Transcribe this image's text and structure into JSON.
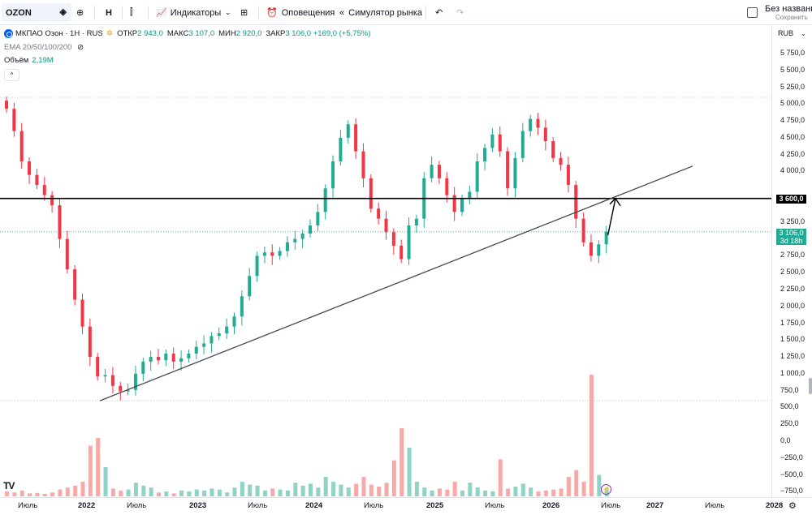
{
  "toolbar": {
    "symbol": "OZON",
    "interval": "H",
    "indicators_label": "Индикаторы",
    "alerts_label": "Оповещения",
    "replay_label": "Симулятор рынка",
    "layout_name": "Без названия",
    "save_label": "Сохранить"
  },
  "legend": {
    "title": "МКПАО Озон · 1Н · RUS",
    "open_key": "ОТКР",
    "open_val": "2 943,0",
    "high_key": "МАКС",
    "high_val": "3 107,0",
    "low_key": "МИН",
    "low_val": "2 920,0",
    "close_key": "ЗАКР",
    "close_val": "3 106,0 +169,0 (+5,75%)",
    "ema": "EMA 20/50/100/200",
    "volume_key": "Объём",
    "volume_val": "2,19M"
  },
  "price_axis": {
    "currency": "RUB",
    "ticks": [
      {
        "label": "5 750,0",
        "price": 5750
      },
      {
        "label": "5 500,0",
        "price": 5500
      },
      {
        "label": "5 250,0",
        "price": 5250
      },
      {
        "label": "5 000,0",
        "price": 5000
      },
      {
        "label": "4 750,0",
        "price": 4750
      },
      {
        "label": "4 500,0",
        "price": 4500
      },
      {
        "label": "4 250,0",
        "price": 4250
      },
      {
        "label": "4 000,0",
        "price": 4000
      },
      {
        "label": "3 250,0",
        "price": 3250
      },
      {
        "label": "3 000,0",
        "price": 3000
      },
      {
        "label": "2 750,0",
        "price": 2750
      },
      {
        "label": "2 500,0",
        "price": 2500
      },
      {
        "label": "2 250,0",
        "price": 2250
      },
      {
        "label": "2 000,0",
        "price": 2000
      },
      {
        "label": "1 750,0",
        "price": 1750
      },
      {
        "label": "1 500,0",
        "price": 1500
      },
      {
        "label": "1 250,0",
        "price": 1250
      },
      {
        "label": "1 000,0",
        "price": 1000
      },
      {
        "label": "750,0",
        "price": 750
      },
      {
        "label": "500,0",
        "price": 500
      },
      {
        "label": "250,0",
        "price": 250
      },
      {
        "label": "0,0",
        "price": 0
      },
      {
        "label": "−250,0",
        "price": -250
      },
      {
        "label": "−500,0",
        "price": -500
      },
      {
        "label": "−750,0",
        "price": -750
      }
    ],
    "level_tag": "3 600,0",
    "current_price": "3 106,0",
    "countdown": "3d 18h"
  },
  "time_axis": [
    {
      "label": "Июль",
      "bold": false
    },
    {
      "label": "2022",
      "bold": true
    },
    {
      "label": "Июль",
      "bold": false
    },
    {
      "label": "2023",
      "bold": true
    },
    {
      "label": "Июль",
      "bold": false
    },
    {
      "label": "2024",
      "bold": true
    },
    {
      "label": "Июль",
      "bold": false
    },
    {
      "label": "2025",
      "bold": true
    },
    {
      "label": "Июль",
      "bold": false
    },
    {
      "label": "2026",
      "bold": true
    },
    {
      "label": "Июль",
      "bold": false
    },
    {
      "label": "2027",
      "bold": true
    },
    {
      "label": "Июль",
      "bold": false
    },
    {
      "label": "2028",
      "bold": true
    }
  ],
  "colors": {
    "up": "#22ab94",
    "down": "#f23645",
    "vol_up": "#8fd3c6",
    "vol_down": "#f7a9a7",
    "level": "#000000",
    "trend": "#434651"
  },
  "chart_data": {
    "type": "candlestick",
    "ylim": [
      -750,
      5750
    ],
    "price_level": 3600,
    "current_price": 3106,
    "closes": [
      4930,
      4600,
      4150,
      3950,
      3800,
      3650,
      3500,
      3000,
      2550,
      2100,
      1700,
      1250,
      960,
      980,
      820,
      740,
      760,
      1000,
      1180,
      1250,
      1200,
      1300,
      1180,
      1230,
      1300,
      1400,
      1450,
      1560,
      1600,
      1700,
      1850,
      2150,
      2450,
      2750,
      2800,
      2750,
      2820,
      2950,
      3000,
      3080,
      3200,
      3400,
      3750,
      4150,
      4500,
      4700,
      4300,
      3900,
      3450,
      3300,
      3100,
      2900,
      2700,
      3200,
      3300,
      3900,
      4100,
      3900,
      3650,
      3400,
      3600,
      3700,
      4150,
      4350,
      4550,
      4300,
      3750,
      4200,
      4600,
      4780,
      4650,
      4450,
      4200,
      4100,
      3800,
      3300,
      2950,
      2750,
      2920,
      3106
    ],
    "volumes": [
      50,
      40,
      60,
      30,
      35,
      25,
      40,
      70,
      90,
      110,
      150,
      520,
      600,
      300,
      80,
      60,
      70,
      140,
      110,
      90,
      40,
      50,
      30,
      60,
      50,
      70,
      60,
      80,
      70,
      40,
      90,
      150,
      120,
      110,
      60,
      80,
      70,
      60,
      140,
      110,
      130,
      90,
      200,
      150,
      120,
      90,
      130,
      200,
      120,
      100,
      140,
      370,
      700,
      500,
      150,
      90,
      60,
      80,
      70,
      150,
      60,
      140,
      90,
      60,
      50,
      380,
      80,
      100,
      130,
      90,
      50,
      60,
      70,
      80,
      200,
      270,
      150,
      1250,
      220,
      90
    ],
    "trendline": [
      {
        "date": "2022-03",
        "price": 600
      },
      {
        "date": "2027-01",
        "price": 4080
      }
    ],
    "arrow_to": {
      "date": "2026-09",
      "price": 3600
    }
  }
}
